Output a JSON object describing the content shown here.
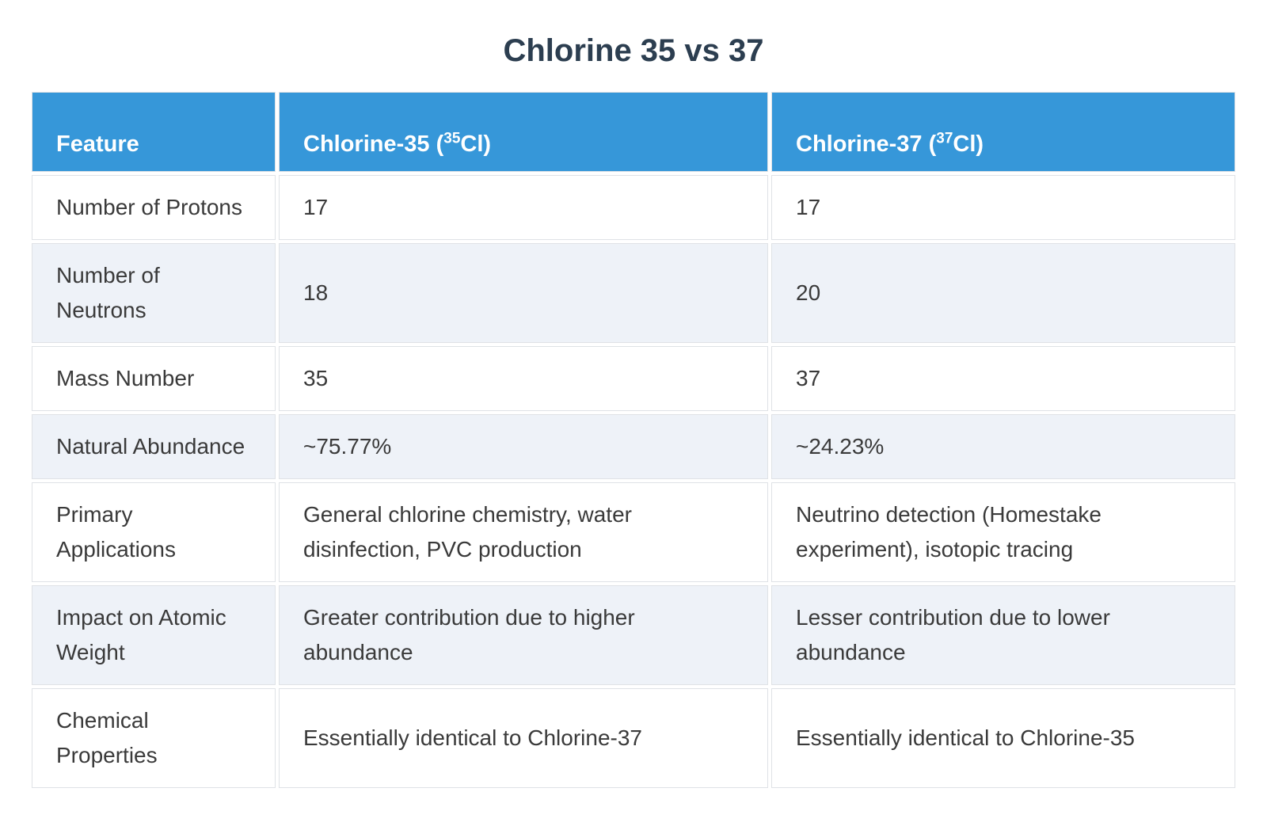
{
  "title": "Chlorine 35 vs 37",
  "table": {
    "header": {
      "feature": "Feature",
      "cl35": {
        "prefix": "Chlorine-35 (",
        "sup": "35",
        "suffix": "Cl)"
      },
      "cl37": {
        "prefix": "Chlorine-37 (",
        "sup": "37",
        "suffix": "Cl)"
      }
    },
    "rows": [
      {
        "feature": "Number of Protons",
        "cl35": "17",
        "cl37": "17"
      },
      {
        "feature": "Number of Neutrons",
        "cl35": "18",
        "cl37": "20"
      },
      {
        "feature": "Mass Number",
        "cl35": "35",
        "cl37": "37"
      },
      {
        "feature": "Natural Abundance",
        "cl35": "~75.77%",
        "cl37": "~24.23%"
      },
      {
        "feature": "Primary Applications",
        "cl35": "General chlorine chemistry, water disinfection, PVC production",
        "cl37": "Neutrino detection (Homestake experiment), isotopic tracing"
      },
      {
        "feature": "Impact on Atomic Weight",
        "cl35": "Greater contribution due to higher abundance",
        "cl37": "Lesser contribution due to lower abundance"
      },
      {
        "feature": "Chemical Properties",
        "cl35": "Essentially identical to Chlorine-37",
        "cl37": "Essentially identical to Chlorine-35"
      }
    ]
  },
  "chart_data": {
    "type": "table",
    "title": "Chlorine 35 vs 37",
    "columns": [
      "Feature",
      "Chlorine-35 (35Cl)",
      "Chlorine-37 (37Cl)"
    ],
    "rows": [
      [
        "Number of Protons",
        "17",
        "17"
      ],
      [
        "Number of Neutrons",
        "18",
        "20"
      ],
      [
        "Mass Number",
        "35",
        "37"
      ],
      [
        "Natural Abundance",
        "~75.77%",
        "~24.23%"
      ],
      [
        "Primary Applications",
        "General chlorine chemistry, water disinfection, PVC production",
        "Neutrino detection (Homestake experiment), isotopic tracing"
      ],
      [
        "Impact on Atomic Weight",
        "Greater contribution due to higher abundance",
        "Lesser contribution due to lower abundance"
      ],
      [
        "Chemical Properties",
        "Essentially identical to Chlorine-37",
        "Essentially identical to Chlorine-35"
      ]
    ]
  },
  "colors": {
    "page_bg": "#ffffff",
    "title_text": "#2c3e50",
    "header_bg": "#3697d9",
    "header_text": "#ffffff",
    "row_bg": "#ffffff",
    "row_alt_bg": "#eef2f8",
    "cell_border": "#dfe2e6",
    "body_text": "#3a3a3a"
  }
}
